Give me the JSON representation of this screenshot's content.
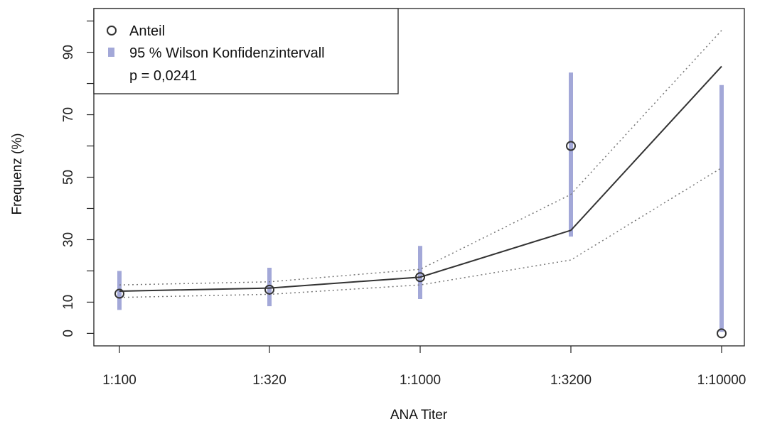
{
  "chart_data": {
    "type": "line",
    "title": "",
    "xlabel": "ANA Titer",
    "ylabel": "Frequenz (%)",
    "categories": [
      "1:100",
      "1:320",
      "1:1000",
      "1:3200",
      "1:10000"
    ],
    "yticks": [
      0,
      10,
      30,
      50,
      70,
      90
    ],
    "ylim": [
      -4,
      104
    ],
    "grid": false,
    "legend_position": "top-left",
    "series": [
      {
        "name": "Anteil",
        "kind": "points",
        "values": [
          12.7,
          14.0,
          18.0,
          60.0,
          0
        ]
      },
      {
        "name": "95 % Wilson Konfidenzintervall",
        "kind": "interval",
        "lower": [
          7.5,
          8.7,
          11.0,
          31.0,
          0.5
        ],
        "upper": [
          20.0,
          21.0,
          28.0,
          83.5,
          79.5
        ]
      }
    ],
    "fit": {
      "values": [
        13.5,
        14.5,
        18.0,
        33.0,
        85.5
      ],
      "lower": [
        11.5,
        12.5,
        15.5,
        23.5,
        53.0
      ],
      "upper": [
        15.5,
        16.5,
        20.5,
        44.5,
        97.0
      ]
    },
    "annotation": "p = 0,0241",
    "colors": {
      "points": "#333333",
      "interval": "#a3a8d8",
      "fit": "#333333",
      "band": "#777777"
    }
  }
}
